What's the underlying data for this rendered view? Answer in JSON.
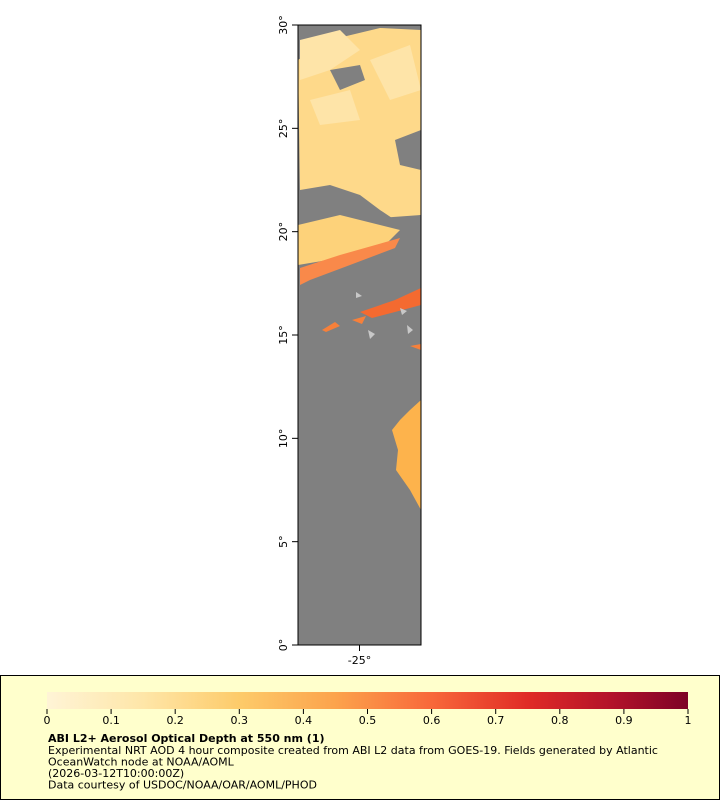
{
  "map": {
    "lat_range": [
      0,
      30
    ],
    "lon_range": [
      -28,
      -22
    ],
    "lat_ticks": [
      {
        "value": 0,
        "label": "0°"
      },
      {
        "value": 5,
        "label": "5°"
      },
      {
        "value": 10,
        "label": "10°"
      },
      {
        "value": 15,
        "label": "15°"
      },
      {
        "value": 20,
        "label": "20°"
      },
      {
        "value": 25,
        "label": "25°"
      },
      {
        "value": 30,
        "label": "30°"
      }
    ],
    "lon_ticks": [
      {
        "value": -25,
        "label": "-25°"
      }
    ]
  },
  "colorbar": {
    "range": [
      0,
      1
    ],
    "ticks": [
      0,
      0.1,
      0.2,
      0.3,
      0.4,
      0.5,
      0.6,
      0.7,
      0.8,
      0.9,
      1
    ]
  },
  "legend": {
    "title": "ABI L2+ Aerosol Optical Depth at 550 nm (1)",
    "lines": [
      "Experimental NRT AOD 4 hour composite created from ABI L2 data from GOES-19. Fields generated by Atlantic",
      "OceanWatch node at NOAA/AOML",
      "(2026-03-12T10:00:00Z)",
      "Data courtesy of USDOC/NOAA/OAR/AOML/PHOD"
    ]
  }
}
